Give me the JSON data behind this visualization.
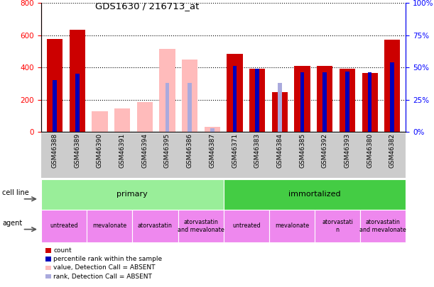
{
  "title": "GDS1630 / 216713_at",
  "samples": [
    "GSM46388",
    "GSM46389",
    "GSM46390",
    "GSM46391",
    "GSM46394",
    "GSM46395",
    "GSM46386",
    "GSM46387",
    "GSM46371",
    "GSM46383",
    "GSM46384",
    "GSM46385",
    "GSM46392",
    "GSM46393",
    "GSM46380",
    "GSM46382"
  ],
  "count_present": [
    575,
    635,
    0,
    0,
    0,
    0,
    0,
    0,
    485,
    390,
    248,
    410,
    410,
    390,
    365,
    570
  ],
  "count_absent": [
    0,
    0,
    130,
    148,
    185,
    515,
    450,
    30,
    0,
    0,
    0,
    0,
    0,
    0,
    0,
    0
  ],
  "pct_present": [
    40,
    45,
    0,
    0,
    0,
    0,
    0,
    0,
    51,
    49,
    0,
    46,
    46,
    47,
    46,
    54
  ],
  "pct_absent": [
    0,
    0,
    0,
    0,
    0,
    38,
    38,
    3,
    0,
    0,
    38,
    0,
    0,
    0,
    0,
    0
  ],
  "cell_line_groups": [
    {
      "label": "primary",
      "start": 0,
      "end": 8,
      "color": "#99ee99"
    },
    {
      "label": "immortalized",
      "start": 8,
      "end": 16,
      "color": "#44cc44"
    }
  ],
  "agent_groups": [
    {
      "label": "untreated",
      "start": 0,
      "end": 2
    },
    {
      "label": "mevalonate",
      "start": 2,
      "end": 4
    },
    {
      "label": "atorvastatin",
      "start": 4,
      "end": 6
    },
    {
      "label": "atorvastatin\nand mevalonate",
      "start": 6,
      "end": 8
    },
    {
      "label": "untreated",
      "start": 8,
      "end": 10
    },
    {
      "label": "mevalonate",
      "start": 10,
      "end": 12
    },
    {
      "label": "atorvastati\nn",
      "start": 12,
      "end": 14
    },
    {
      "label": "atorvastatin\nand mevalonate",
      "start": 14,
      "end": 16
    }
  ],
  "ylim_left": [
    0,
    800
  ],
  "ylim_right": [
    0,
    100
  ],
  "color_count_present": "#cc0000",
  "color_count_absent": "#ffbbbb",
  "color_pct_present": "#0000bb",
  "color_pct_absent": "#aaaadd",
  "cell_line_color_primary": "#99ee99",
  "cell_line_color_imm": "#44cc44",
  "agent_color": "#ee88ee",
  "agent_color_dark": "#cc44cc",
  "tick_area_color": "#cccccc"
}
